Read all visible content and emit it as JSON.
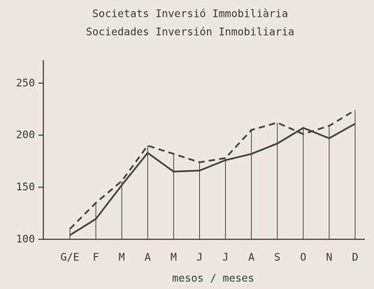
{
  "chart_data": {
    "type": "line",
    "title": "Societats Inversió Immobiliària",
    "subtitle": "Sociedades Inversión Inmobiliaria",
    "xlabel": "mesos / meses",
    "categories": [
      "G/E",
      "F",
      "M",
      "A",
      "M",
      "J",
      "J",
      "A",
      "S",
      "O",
      "N",
      "D"
    ],
    "series": [
      {
        "color": "#4a4440",
        "style": "solid",
        "values": [
          104,
          119.5,
          152,
          183,
          165,
          166,
          176,
          182,
          192,
          207,
          197,
          211
        ]
      },
      {
        "color": "#4a4440",
        "style": "dashed",
        "values": [
          110,
          135,
          156,
          190,
          182,
          174,
          178,
          205,
          212,
          201,
          209,
          224
        ]
      }
    ],
    "ylim": [
      100,
      270
    ],
    "yticks": [
      100,
      150,
      200,
      250
    ]
  }
}
